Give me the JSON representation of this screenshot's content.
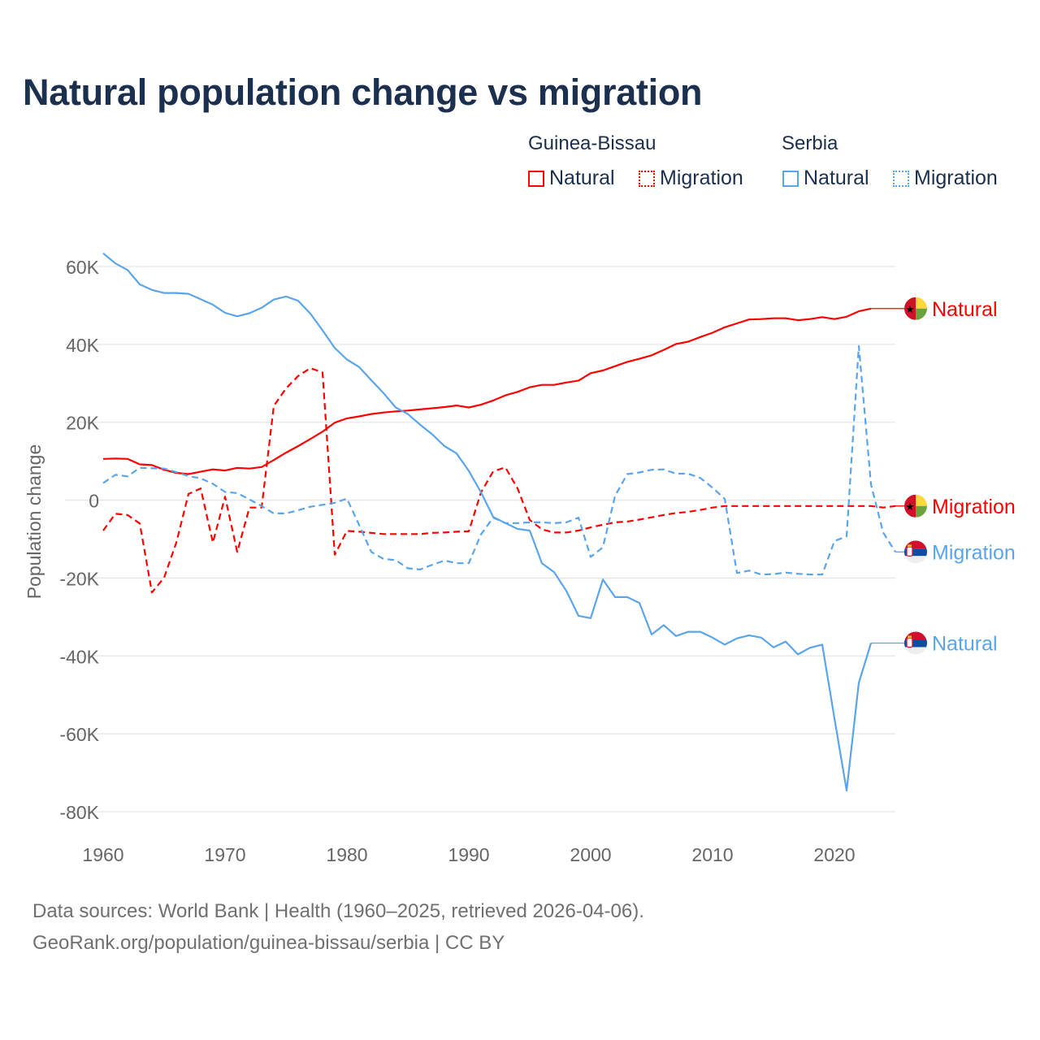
{
  "chart_data": {
    "type": "line",
    "title": "Natural population change vs migration",
    "xlabel": "",
    "ylabel": "Population change",
    "xlim": [
      1960,
      2025
    ],
    "ylim": [
      -80000,
      60000
    ],
    "x_ticks": [
      1960,
      1970,
      1980,
      1990,
      2000,
      2010,
      2020
    ],
    "x_tick_labels": [
      "1960",
      "1970",
      "1980",
      "1990",
      "2000",
      "2010",
      "2020"
    ],
    "y_ticks": [
      60000,
      40000,
      20000,
      0,
      -20000,
      -40000,
      -60000,
      -80000
    ],
    "y_tick_labels": [
      "60K",
      "40K",
      "20K",
      "0",
      "-20K",
      "-40K",
      "-60K",
      "-80K"
    ],
    "grid": true,
    "legend_placement": "top-right",
    "legend_groups": [
      {
        "name": "Guinea-Bissau",
        "items": [
          "Natural",
          "Migration"
        ]
      },
      {
        "name": "Serbia",
        "items": [
          "Natural",
          "Migration"
        ]
      }
    ],
    "series": [
      {
        "name": "Natural",
        "country": "Guinea-Bissau",
        "color": "#ff0000",
        "dash": "solid",
        "flag": "guinea-bissau",
        "label_year": 2025,
        "label_value": 49200,
        "start_year": 1960,
        "values": [
          10600,
          10700,
          10600,
          9200,
          9000,
          7800,
          7000,
          6700,
          7300,
          7900,
          7600,
          8300,
          8100,
          8500,
          10300,
          12200,
          13900,
          15700,
          17600,
          19900,
          21000,
          21500,
          22100,
          22500,
          22800,
          23000,
          23300,
          23600,
          23900,
          24300,
          23800,
          24500,
          25600,
          26900,
          27800,
          29000,
          29600,
          29600,
          30200,
          30700,
          32600,
          33300,
          34400,
          35500,
          36300,
          37200,
          38600,
          40100,
          40700,
          41900,
          43000,
          44400,
          45400,
          46400,
          46500,
          46700,
          46700,
          46200,
          46500,
          47000,
          46500,
          47100,
          48500,
          49200
        ]
      },
      {
        "name": "Migration",
        "country": "Guinea-Bissau",
        "color": "#ff0000",
        "dash": "dashed",
        "flag": "guinea-bissau",
        "label_year": 2025,
        "label_value": -1500,
        "start_year": 1960,
        "values": [
          -7800,
          -3500,
          -3800,
          -6000,
          -23700,
          -19900,
          -10900,
          1600,
          3000,
          -10900,
          900,
          -13300,
          -1900,
          -1900,
          24200,
          28700,
          31900,
          33900,
          32800,
          -14000,
          -7900,
          -8100,
          -8400,
          -8700,
          -8700,
          -8700,
          -8700,
          -8400,
          -8300,
          -8100,
          -8000,
          2000,
          7400,
          8400,
          3000,
          -5100,
          -7500,
          -8300,
          -8300,
          -7800,
          -7000,
          -6300,
          -5700,
          -5500,
          -5000,
          -4400,
          -3800,
          -3300,
          -3000,
          -2500,
          -1900,
          -1500,
          -1500,
          -1500,
          -1500,
          -1500,
          -1500,
          -1500,
          -1500,
          -1500,
          -1500,
          -1500,
          -1500,
          -1500,
          -1900,
          -1500
        ]
      },
      {
        "name": "Migration",
        "country": "Serbia",
        "color": "#5aa5ea",
        "dash": "dashed",
        "flag": "serbia",
        "label_year": 2025,
        "label_value": -13300,
        "start_year": 1960,
        "values": [
          4400,
          6500,
          6100,
          8300,
          8200,
          8100,
          7200,
          6200,
          5600,
          4200,
          2100,
          1800,
          200,
          -1500,
          -3400,
          -3400,
          -2600,
          -1700,
          -1200,
          -700,
          400,
          -6400,
          -13300,
          -15100,
          -15400,
          -17500,
          -17800,
          -16600,
          -15500,
          -16200,
          -16200,
          -8800,
          -4500,
          -5900,
          -5900,
          -5700,
          -5700,
          -5900,
          -5700,
          -4500,
          -14600,
          -12100,
          1100,
          6700,
          7100,
          7800,
          7900,
          6800,
          6800,
          5700,
          3200,
          300,
          -18700,
          -18100,
          -19100,
          -19000,
          -18600,
          -18900,
          -19100,
          -19100,
          -10500,
          -9300,
          39600,
          4000,
          -8300,
          -13300
        ]
      },
      {
        "name": "Natural",
        "country": "Serbia",
        "color": "#5aa5ea",
        "dash": "solid",
        "flag": "serbia",
        "label_year": 2025,
        "label_value": -36700,
        "start_year": 1960,
        "values": [
          63400,
          60800,
          59100,
          55400,
          54000,
          53200,
          53200,
          53000,
          51600,
          50200,
          48100,
          47200,
          48000,
          49400,
          51500,
          52300,
          51200,
          47900,
          43600,
          39100,
          36100,
          34200,
          30800,
          27500,
          23800,
          22100,
          19400,
          16900,
          13900,
          12000,
          7500,
          2000,
          -4300,
          -5900,
          -7400,
          -7800,
          -16200,
          -18500,
          -23300,
          -29700,
          -30300,
          -20400,
          -24900,
          -24900,
          -26400,
          -34500,
          -32100,
          -34900,
          -33800,
          -33800,
          -35300,
          -37100,
          -35500,
          -34700,
          -35300,
          -37800,
          -36300,
          -39600,
          -37900,
          -37100,
          -56000,
          -74600,
          -46900,
          -36700
        ]
      }
    ]
  },
  "footer": {
    "line1": "Data sources: World Bank | Health (1960–2025, retrieved 2026-04-06).",
    "line2": "GeoRank.org/population/guinea-bissau/serbia | CC BY"
  }
}
